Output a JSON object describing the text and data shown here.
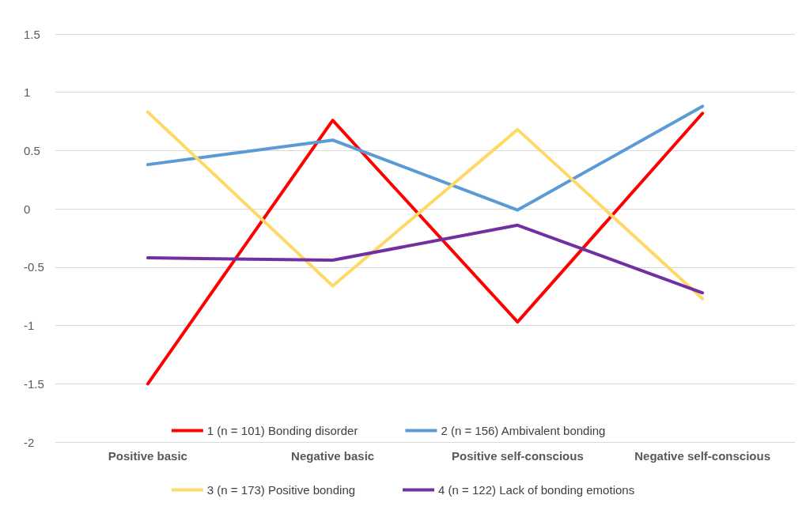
{
  "chart_data": {
    "type": "line",
    "categories": [
      "Positive basic",
      "Negative basic",
      "Positive self-conscious",
      "Negative self-conscious"
    ],
    "series": [
      {
        "name": "1 (n = 101) Bonding disorder",
        "color": "#ff0000",
        "values": [
          -1.5,
          0.76,
          -0.97,
          0.82
        ]
      },
      {
        "name": "2 (n = 156) Ambivalent bonding",
        "color": "#5b9bd5",
        "values": [
          0.38,
          0.59,
          -0.01,
          0.88
        ]
      },
      {
        "name": "3 (n = 173) Positive bonding",
        "color": "#ffd966",
        "values": [
          0.83,
          -0.66,
          0.68,
          -0.77
        ]
      },
      {
        "name": "4 (n = 122) Lack of bonding emotions",
        "color": "#7030a0",
        "values": [
          -0.42,
          -0.44,
          -0.14,
          -0.72
        ]
      }
    ],
    "ylim": [
      -2,
      1.5
    ],
    "yticks": [
      -2,
      -1.5,
      -1,
      -0.5,
      0,
      0.5,
      1,
      1.5
    ],
    "grid": "y",
    "legend": "bottom",
    "marker": "none",
    "line_style": "solid"
  }
}
